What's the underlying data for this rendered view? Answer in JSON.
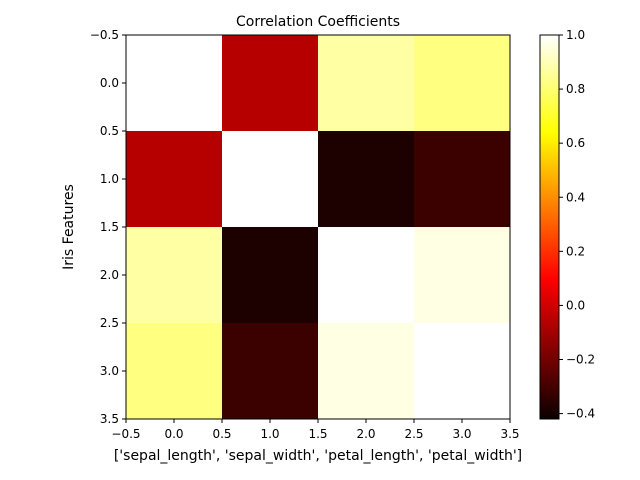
{
  "chart_data": {
    "type": "heatmap",
    "title": "Correlation Coefficients",
    "xlabel": "['sepal_length', 'sepal_width', 'petal_length', 'petal_width']",
    "ylabel": "Iris Features",
    "colormap": "hot",
    "x_ticks": [
      "-0.5",
      "0.0",
      "0.5",
      "1.0",
      "1.5",
      "2.0",
      "2.5",
      "3.0",
      "3.5"
    ],
    "y_ticks": [
      "-0.5",
      "0.0",
      "0.5",
      "1.0",
      "1.5",
      "2.0",
      "2.5",
      "3.0",
      "3.5"
    ],
    "xlim": [
      -0.5,
      3.5
    ],
    "ylim": [
      3.5,
      -0.5
    ],
    "matrix": [
      [
        1.0,
        -0.11,
        0.87,
        0.82
      ],
      [
        -0.11,
        1.0,
        -0.42,
        -0.36
      ],
      [
        0.87,
        -0.42,
        1.0,
        0.96
      ],
      [
        0.82,
        -0.36,
        0.96,
        1.0
      ]
    ],
    "colorbar": {
      "min": -0.42,
      "max": 1.0,
      "ticks": [
        "1.0",
        "0.8",
        "0.6",
        "0.4",
        "0.2",
        "0.0",
        "-0.2",
        "-0.4"
      ]
    }
  }
}
